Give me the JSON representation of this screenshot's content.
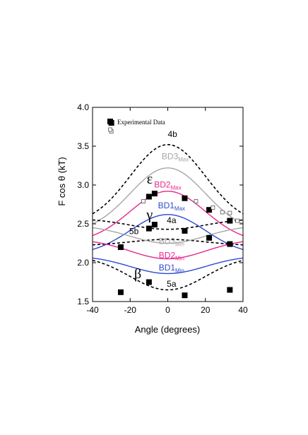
{
  "chart_data": {
    "type": "scatter",
    "title": "",
    "xlabel": "Angle (degrees)",
    "ylabel": "F cos θ (kT)",
    "xlim": [
      -40,
      40
    ],
    "ylim": [
      1.5,
      4.0
    ],
    "x_ticks": [
      -40,
      -20,
      0,
      20,
      40
    ],
    "x_tick_labels": [
      "-40",
      "-20",
      "0",
      "20",
      "40"
    ],
    "y_ticks": [
      1.5,
      2.0,
      2.5,
      3.0,
      3.5,
      4.0
    ],
    "y_tick_labels": [
      "1.5",
      "2.0",
      "2.5",
      "3.0",
      "3.5",
      "4.0"
    ],
    "grid": false,
    "legend": {
      "placement": "top-left",
      "entries": [
        {
          "label": "Experimental Data",
          "marker": "filled-square"
        },
        {
          "label": "",
          "marker": "open-square"
        }
      ]
    },
    "curves": [
      {
        "id": "4b",
        "label": "4b",
        "style": "dashed",
        "color": "#000000",
        "peak": 3.52,
        "width": 20,
        "edge": 2.63
      },
      {
        "id": "bd3max",
        "label": "BD3",
        "subscript": "Max",
        "style": "solid",
        "color": "#a6a6a6",
        "peak": 3.22,
        "width": 20,
        "edge": 2.5
      },
      {
        "id": "bd2max",
        "label": "BD2",
        "subscript": "Max",
        "style": "solid",
        "color": "#e6288c",
        "peak": 2.92,
        "width": 20,
        "edge": 2.35
      },
      {
        "id": "bd1max",
        "label": "BD1",
        "subscript": "Max",
        "style": "solid",
        "color": "#2e4bd0",
        "peak": 2.62,
        "width": 20,
        "edge": 2.17
      },
      {
        "id": "4a",
        "label": "4a",
        "style": "dashed",
        "color": "#000000",
        "peak": 2.43,
        "width": 20,
        "edge": 2.55
      },
      {
        "id": "5b",
        "label": "5b",
        "style": "dashed",
        "color": "#000000",
        "peak": 2.3,
        "width": 20,
        "edge": 2.23
      },
      {
        "id": "bd3min",
        "label": "BD3",
        "subscript": "Min",
        "style": "solid",
        "color": "#a6a6a6",
        "peak": 2.25,
        "width": 20,
        "edge": 2.45
      },
      {
        "id": "bd2min",
        "label": "BD2",
        "subscript": "Min",
        "style": "solid",
        "color": "#e6288c",
        "peak": 2.05,
        "width": 20,
        "edge": 2.27
      },
      {
        "id": "bd1min",
        "label": "BD1",
        "subscript": "Min",
        "style": "solid",
        "color": "#2e4bd0",
        "peak": 1.86,
        "width": 20,
        "edge": 2.06
      },
      {
        "id": "5a",
        "label": "5a",
        "style": "dashed",
        "color": "#000000",
        "peak": 1.65,
        "width": 20,
        "edge": 2.03
      }
    ],
    "series": [
      {
        "name": "Experimental Data",
        "marker": "filled-square",
        "points": [
          {
            "x": -30,
            "y": 3.8
          },
          {
            "x": -25,
            "y": 2.2
          },
          {
            "x": -25,
            "y": 1.62
          },
          {
            "x": -10,
            "y": 2.85
          },
          {
            "x": -10,
            "y": 2.44
          },
          {
            "x": -10,
            "y": 1.75
          },
          {
            "x": -7,
            "y": 2.89
          },
          {
            "x": -7,
            "y": 2.49
          },
          {
            "x": 9,
            "y": 2.83
          },
          {
            "x": 9,
            "y": 2.41
          },
          {
            "x": 9,
            "y": 1.58
          },
          {
            "x": 22,
            "y": 2.68
          },
          {
            "x": 22,
            "y": 2.32
          },
          {
            "x": 33,
            "y": 2.54
          },
          {
            "x": 33,
            "y": 2.24
          },
          {
            "x": 33,
            "y": 1.65
          }
        ]
      },
      {
        "name": "",
        "marker": "open-square",
        "points": [
          {
            "x": -30,
            "y": 3.69
          },
          {
            "x": -13,
            "y": 2.79
          },
          {
            "x": 15,
            "y": 2.79
          },
          {
            "x": 24,
            "y": 2.71
          },
          {
            "x": 29,
            "y": 2.65
          },
          {
            "x": 33,
            "y": 2.64
          },
          {
            "x": 37,
            "y": 2.54
          }
        ]
      }
    ],
    "annotations": [
      {
        "text": "ε",
        "x": -8,
        "y": 3.02
      },
      {
        "text": "γ",
        "x": -8,
        "y": 2.56
      },
      {
        "text": "β",
        "x": -14,
        "y": 1.8
      }
    ],
    "label_positions": [
      {
        "curve": "4b",
        "x": 2.5,
        "y": 3.62
      },
      {
        "curve": "bd3max",
        "x": 4,
        "y": 3.33
      },
      {
        "curve": "bd2max",
        "x": 0,
        "y": 2.97
      },
      {
        "curve": "bd1max",
        "x": 2,
        "y": 2.7
      },
      {
        "curve": "4a",
        "x": 2,
        "y": 2.51
      },
      {
        "curve": "5b",
        "x": -18,
        "y": 2.37
      },
      {
        "curve": "bd3min",
        "x": 2,
        "y": 2.24
      },
      {
        "curve": "bd2min",
        "x": 2,
        "y": 2.06
      },
      {
        "curve": "bd1min",
        "x": 2,
        "y": 1.9
      },
      {
        "curve": "5a",
        "x": 2,
        "y": 1.69
      }
    ]
  }
}
